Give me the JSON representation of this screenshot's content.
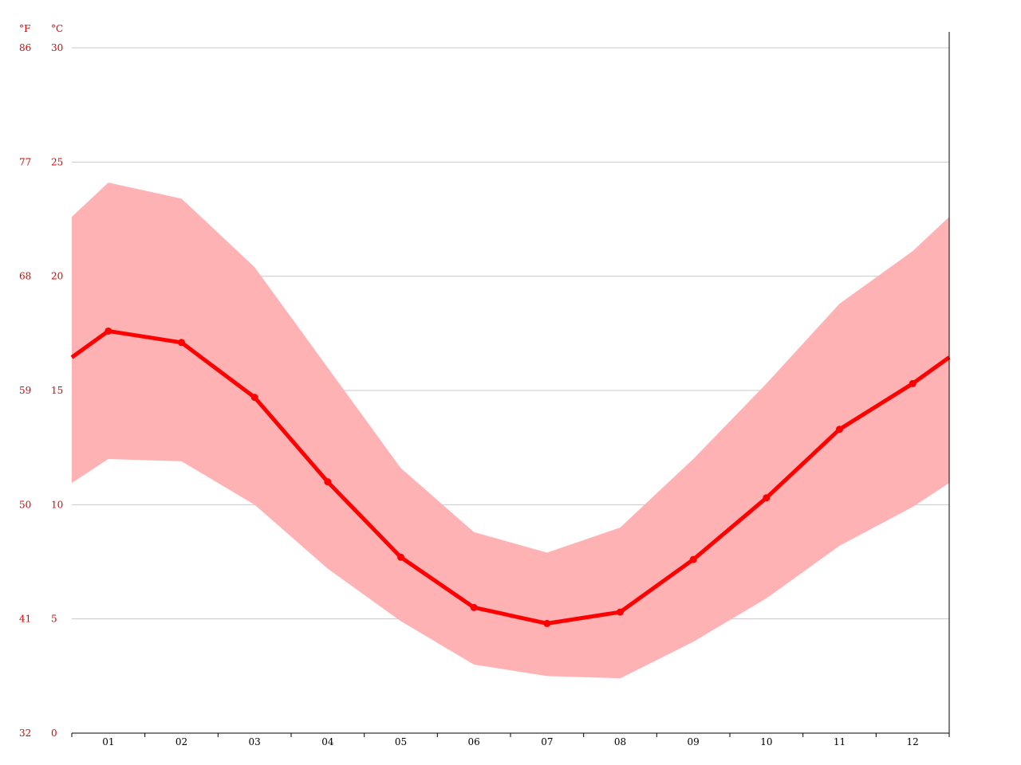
{
  "chart_data": {
    "type": "line",
    "title": "",
    "xlabel": "",
    "ylabel": "",
    "units": {
      "fahrenheit": "°F",
      "celsius": "°C"
    },
    "categories": [
      "01",
      "02",
      "03",
      "04",
      "05",
      "06",
      "07",
      "08",
      "09",
      "10",
      "11",
      "12"
    ],
    "ylim": [
      0,
      30
    ],
    "celsius_ticks": [
      "0",
      "5",
      "10",
      "15",
      "20",
      "25",
      "30"
    ],
    "fahrenheit_ticks": [
      "32",
      "41",
      "50",
      "59",
      "68",
      "77",
      "86"
    ],
    "grid": true,
    "series": [
      {
        "role": "mean",
        "values": [
          17.6,
          17.1,
          14.7,
          11.0,
          7.7,
          5.5,
          4.8,
          5.3,
          7.6,
          10.3,
          13.3,
          15.3
        ]
      },
      {
        "role": "max",
        "values": [
          24.1,
          23.4,
          20.4,
          16.0,
          11.6,
          8.8,
          7.9,
          9.0,
          12.0,
          15.3,
          18.8,
          21.1
        ]
      },
      {
        "role": "min",
        "values": [
          12.0,
          11.9,
          10.0,
          7.2,
          4.9,
          3.0,
          2.5,
          2.4,
          4.0,
          5.9,
          8.2,
          9.9
        ]
      }
    ],
    "colors": {
      "line": "#ff0000",
      "band": "#ffb2b4",
      "ticks": "#e00000",
      "grid": "#c8c8c8"
    }
  }
}
